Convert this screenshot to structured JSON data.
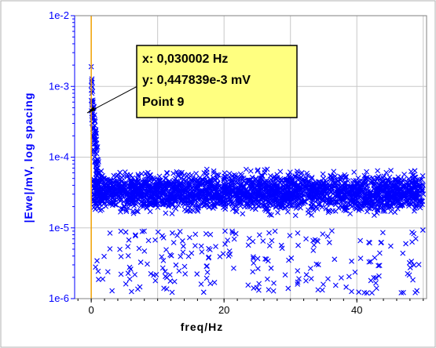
{
  "chart_data": {
    "type": "scatter",
    "title": "",
    "xlabel": "freq/Hz",
    "ylabel": "|Ewe|/mV, log spacing",
    "xlim": [
      -2.5,
      50.5
    ],
    "ylim": [
      1e-06,
      0.01
    ],
    "y_scale": "log",
    "x_ticks": [
      0,
      20,
      40
    ],
    "x_tick_labels": [
      "0",
      "20",
      "40"
    ],
    "y_ticks": [
      1e-06,
      1e-05,
      0.0001,
      0.001,
      0.01
    ],
    "y_tick_labels": [
      "1e-6",
      "1e-5",
      "1e-4",
      "1e-3",
      "1e-2"
    ],
    "grid": true,
    "marker": "x",
    "series": [
      {
        "color": "#0000ff",
        "x": [
          0,
          0.03,
          0.06,
          0.09,
          0.12,
          0.15,
          0.18,
          0.21,
          0.24,
          0.27,
          0.3,
          0.4,
          0.5,
          0.6,
          0.8,
          1.0,
          1.3,
          1.6,
          2.0,
          2.5,
          3.0,
          3.5,
          4.0,
          5.0,
          6.0,
          7.0,
          8.0,
          10.0,
          12.0,
          15.0,
          18.0,
          20.0,
          22.0,
          25.0,
          28.0,
          30.0,
          32.0,
          35.0,
          38.0,
          40.0,
          42.0,
          45.0,
          48.0,
          50.0
        ],
        "y": [
          0.0019,
          0.00045,
          0.0012,
          0.0008,
          0.0006,
          0.0005,
          0.0004,
          0.0003,
          0.00025,
          0.0002,
          0.00015,
          0.00012,
          0.0001,
          9e-05,
          8e-05,
          7e-05,
          6e-05,
          5e-05,
          4e-05,
          4e-05,
          3e-05,
          3e-05,
          3e-05,
          3e-05,
          3e-05,
          3e-05,
          3e-05,
          3e-05,
          3e-05,
          3e-05,
          3e-05,
          3e-05,
          3e-05,
          3e-05,
          3e-05,
          3e-05,
          3e-05,
          3e-05,
          3e-05,
          3e-05,
          3e-05,
          3e-05,
          3e-05,
          3e-05
        ],
        "y_band_top": 6e-05,
        "y_band_bottom": 6e-06,
        "y_outlier_min": 1.2e-06
      }
    ],
    "cursor_x": 0,
    "cursor_color": "#f0a000",
    "background": "#ffffff",
    "grid_color": "#c8c8c8",
    "annotation": {
      "lines": [
        "x: 0,030002 Hz",
        "y: 0,447839e-3 mV",
        "Point 9"
      ],
      "point": {
        "x": 0.030002,
        "y": 0.000447839
      },
      "box_color": "#ffff80"
    }
  }
}
